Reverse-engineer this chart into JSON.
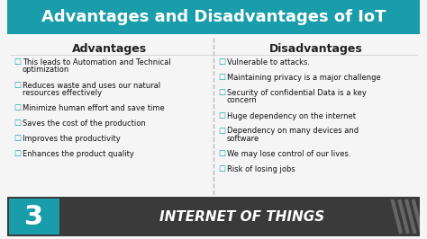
{
  "title": "Advantages and Disadvantages of IoT",
  "title_bg_color": "#1a9daa",
  "title_text_color": "#ffffff",
  "body_bg_color": "#f5f5f5",
  "divider_color": "#aaaaaa",
  "col_header_color": "#222222",
  "item_text_color": "#1a9daa",
  "advantages_header": "Advantages",
  "disadvantages_header": "Disadvantages",
  "advantages": [
    "This leads to Automation and Technical\noptimization",
    "Reduces waste and uses our natural\nresources effectively",
    "Minimize human effort and save time",
    "Saves the cost of the production",
    "Improves the productivity",
    "Enhances the product quality"
  ],
  "disadvantages": [
    "Vulnerable to attacks.",
    "Maintaining privacy is a major challenge",
    "Security of confidential Data is a key\nconcern",
    "Huge dependency on the internet",
    "Dependency on many devices and\nsoftware",
    "We may lose control of our lives.",
    "Risk of losing jobs"
  ],
  "footer_bg_color": "#3a3a3a",
  "footer_number": "3",
  "footer_number_bg": "#1a9daa",
  "footer_text": "INTERNET OF THINGS",
  "footer_text_color": "#ffffff",
  "footer_number_color": "#ffffff",
  "checkbox_color": "#1a9daa",
  "stripe_color": "#666666"
}
